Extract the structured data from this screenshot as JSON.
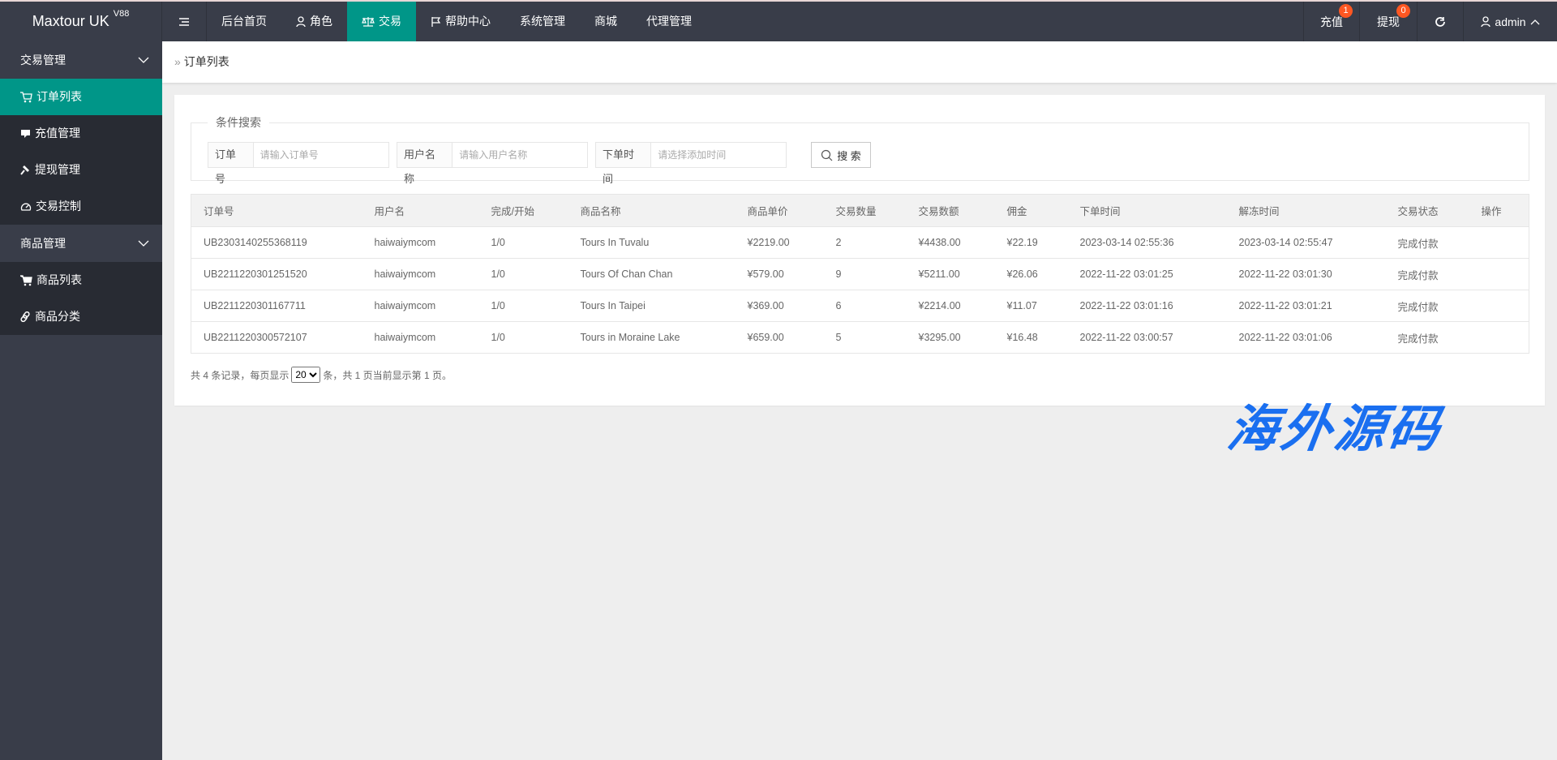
{
  "header": {
    "logo": "Maxtour UK",
    "logo_version": "V88",
    "nav": [
      {
        "label": "后台首页",
        "icon": ""
      },
      {
        "label": "角色",
        "icon": "user-icon"
      },
      {
        "label": "交易",
        "icon": "scale-icon",
        "active": true
      },
      {
        "label": "帮助中心",
        "icon": "flag-icon"
      },
      {
        "label": "系统管理",
        "icon": ""
      },
      {
        "label": "商城",
        "icon": ""
      },
      {
        "label": "代理管理",
        "icon": ""
      }
    ],
    "recharge": {
      "label": "充值",
      "badge": "1"
    },
    "withdraw": {
      "label": "提现",
      "badge": "0"
    },
    "user": "admin",
    "badge_color": "#FF5722"
  },
  "sidebar": {
    "groups": [
      {
        "label": "交易管理",
        "items": [
          {
            "label": "订单列表",
            "icon": "cart-icon",
            "active": true
          },
          {
            "label": "充值管理",
            "icon": "chat-icon"
          },
          {
            "label": "提现管理",
            "icon": "gavel-icon"
          },
          {
            "label": "交易控制",
            "icon": "gauge-icon"
          }
        ]
      },
      {
        "label": "商品管理",
        "items": [
          {
            "label": "商品列表",
            "icon": "cart-icon"
          },
          {
            "label": "商品分类",
            "icon": "link-icon"
          }
        ]
      }
    ],
    "accent": "#009688"
  },
  "breadcrumb": "订单列表",
  "search": {
    "legend": "条件搜索",
    "order_label": "订单号",
    "order_placeholder": "请输入订单号",
    "user_label": "用户名称",
    "user_placeholder": "请输入用户名称",
    "time_label": "下单时间",
    "time_placeholder": "请选择添加时间",
    "button": "搜 索"
  },
  "table": {
    "columns": [
      "订单号",
      "用户名",
      "完成/开始",
      "商品名称",
      "商品单价",
      "交易数量",
      "交易数额",
      "佣金",
      "下单时间",
      "解冻时间",
      "交易状态",
      "操作"
    ],
    "rows": [
      [
        "UB2303140255368119",
        "haiwaiymcom",
        "1/0",
        "Tours In Tuvalu",
        "¥2219.00",
        "2",
        "¥4438.00",
        "¥22.19",
        "2023-03-14 02:55:36",
        "2023-03-14 02:55:47",
        "完成付款",
        ""
      ],
      [
        "UB2211220301251520",
        "haiwaiymcom",
        "1/0",
        "Tours Of Chan Chan",
        "¥579.00",
        "9",
        "¥5211.00",
        "¥26.06",
        "2022-11-22 03:01:25",
        "2022-11-22 03:01:30",
        "完成付款",
        ""
      ],
      [
        "UB2211220301167711",
        "haiwaiymcom",
        "1/0",
        "Tours In Taipei",
        "¥369.00",
        "6",
        "¥2214.00",
        "¥11.07",
        "2022-11-22 03:01:16",
        "2022-11-22 03:01:21",
        "完成付款",
        ""
      ],
      [
        "UB2211220300572107",
        "haiwaiymcom",
        "1/0",
        "Tours in Moraine Lake",
        "¥659.00",
        "5",
        "¥3295.00",
        "¥16.48",
        "2022-11-22 03:00:57",
        "2022-11-22 03:01:06",
        "完成付款",
        ""
      ]
    ]
  },
  "pager": {
    "before": "共 4 条记录，每页显示",
    "page_size": "20",
    "after": "条，共 1 页当前显示第 1 页。"
  },
  "watermark": "海外源码"
}
